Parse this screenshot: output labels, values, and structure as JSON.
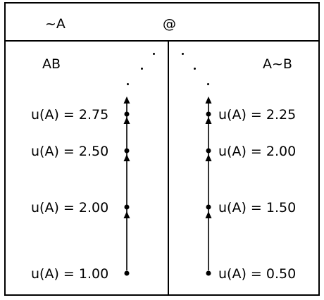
{
  "header": {
    "left_label": "~A",
    "right_label": "@"
  },
  "left_column": {
    "title": "AB",
    "levels": [
      {
        "label": "u(A) = 2.75",
        "value": 2.75
      },
      {
        "label": "u(A) = 2.50",
        "value": 2.5
      },
      {
        "label": "u(A) = 2.00",
        "value": 2.0
      },
      {
        "label": "u(A) = 1.00",
        "value": 1.0
      }
    ]
  },
  "right_column": {
    "title": "A~B",
    "levels": [
      {
        "label": "u(A) = 2.25",
        "value": 2.25
      },
      {
        "label": "u(A) = 2.00",
        "value": 2.0
      },
      {
        "label": "u(A) = 1.50",
        "value": 1.5
      },
      {
        "label": "u(A) = 0.50",
        "value": 0.5
      }
    ]
  }
}
